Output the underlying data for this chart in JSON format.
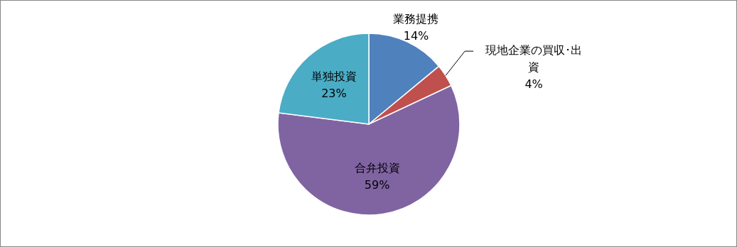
{
  "chart_data": {
    "type": "pie",
    "categories": [
      "業務提携",
      "現地企業の買収･出資",
      "合弁投資",
      "単独投資"
    ],
    "values": [
      14,
      4,
      59,
      23
    ],
    "colors": [
      "#4f81bd",
      "#c0504d",
      "#8064a2",
      "#4bacc6"
    ],
    "value_labels": [
      "14%",
      "4%",
      "59%",
      "23%"
    ]
  }
}
